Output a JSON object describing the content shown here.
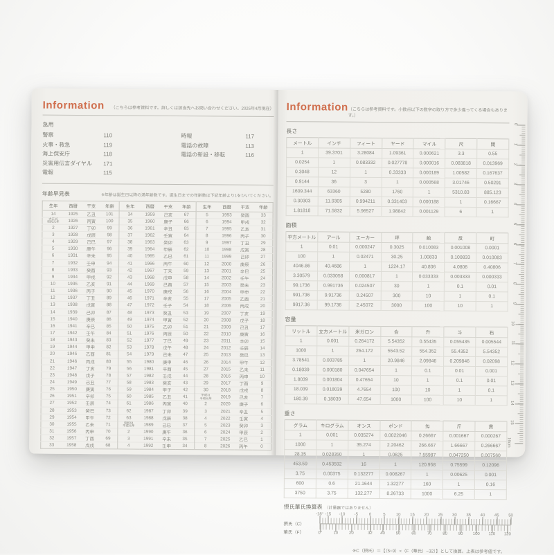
{
  "left_page": {
    "title": "Information",
    "note": "（こちらは参考資料です。詳しくは該当先へお問い合わせください。2025年4月現在）",
    "emergency": {
      "heading": "急用",
      "col1": [
        {
          "label": "警察",
          "number": "110"
        },
        {
          "label": "火事・救急",
          "number": "119"
        },
        {
          "label": "海上保安庁",
          "number": "118"
        },
        {
          "label": "災害用伝言ダイヤル",
          "number": "171"
        },
        {
          "label": "電報",
          "number": "115"
        }
      ],
      "col2": [
        {
          "label": "時報",
          "number": "117"
        },
        {
          "label": "電話の故障",
          "number": "113"
        },
        {
          "label": "電話の新設・移転",
          "number": "116"
        }
      ]
    },
    "age_table": {
      "heading": "年齢早見表",
      "note": "※年齢は誕生日以降の満年齢数です。誕生日までの年齢数は下記年齢より1をひいてください。",
      "headers": [
        "生年",
        "西暦",
        "干支",
        "年齢"
      ],
      "groups": [
        [
          [
            "14",
            "1925",
            "乙丑",
            "101"
          ],
          [
            "大正15|昭和元年",
            "1926",
            "丙寅",
            "100"
          ],
          [
            "2",
            "1927",
            "丁卯",
            "99"
          ],
          [
            "3",
            "1928",
            "戊辰",
            "98"
          ],
          [
            "4",
            "1929",
            "己巳",
            "97"
          ],
          [
            "5",
            "1930",
            "庚午",
            "96"
          ],
          [
            "6",
            "1931",
            "辛未",
            "95"
          ],
          [
            "7",
            "1932",
            "壬申",
            "94"
          ],
          [
            "8",
            "1933",
            "癸酉",
            "93"
          ],
          [
            "9",
            "1934",
            "甲戌",
            "92"
          ],
          [
            "10",
            "1935",
            "乙亥",
            "91"
          ],
          [
            "11",
            "1936",
            "丙子",
            "90"
          ],
          [
            "12",
            "1937",
            "丁丑",
            "89"
          ],
          [
            "13",
            "1938",
            "戊寅",
            "88"
          ],
          [
            "14",
            "1939",
            "己卯",
            "87"
          ],
          [
            "15",
            "1940",
            "庚辰",
            "86"
          ],
          [
            "16",
            "1941",
            "辛巳",
            "85"
          ],
          [
            "17",
            "1942",
            "壬午",
            "84"
          ],
          [
            "18",
            "1943",
            "癸未",
            "83"
          ],
          [
            "19",
            "1944",
            "甲申",
            "82"
          ],
          [
            "20",
            "1945",
            "乙酉",
            "81"
          ],
          [
            "21",
            "1946",
            "丙戌",
            "80"
          ],
          [
            "22",
            "1947",
            "丁亥",
            "79"
          ],
          [
            "23",
            "1948",
            "戊子",
            "78"
          ],
          [
            "24",
            "1949",
            "己丑",
            "77"
          ],
          [
            "25",
            "1950",
            "庚寅",
            "76"
          ],
          [
            "26",
            "1951",
            "辛卯",
            "75"
          ],
          [
            "27",
            "1952",
            "壬辰",
            "74"
          ],
          [
            "28",
            "1953",
            "癸巳",
            "73"
          ],
          [
            "29",
            "1954",
            "甲午",
            "72"
          ],
          [
            "30",
            "1955",
            "乙未",
            "71"
          ],
          [
            "31",
            "1956",
            "丙申",
            "70"
          ],
          [
            "32",
            "1957",
            "丁酉",
            "69"
          ],
          [
            "33",
            "1958",
            "戊戌",
            "68"
          ]
        ],
        [
          [
            "34",
            "1959",
            "己亥",
            "67"
          ],
          [
            "35",
            "1960",
            "庚子",
            "66"
          ],
          [
            "36",
            "1961",
            "辛丑",
            "65"
          ],
          [
            "37",
            "1962",
            "壬寅",
            "64"
          ],
          [
            "38",
            "1963",
            "癸卯",
            "63"
          ],
          [
            "39",
            "1964",
            "甲辰",
            "62"
          ],
          [
            "40",
            "1965",
            "乙巳",
            "61"
          ],
          [
            "41",
            "1966",
            "丙午",
            "60"
          ],
          [
            "42",
            "1967",
            "丁未",
            "59"
          ],
          [
            "43",
            "1968",
            "戊申",
            "58"
          ],
          [
            "44",
            "1969",
            "己酉",
            "57"
          ],
          [
            "45",
            "1970",
            "庚戌",
            "56"
          ],
          [
            "46",
            "1971",
            "辛亥",
            "55"
          ],
          [
            "47",
            "1972",
            "壬子",
            "54"
          ],
          [
            "48",
            "1973",
            "癸丑",
            "53"
          ],
          [
            "49",
            "1974",
            "甲寅",
            "52"
          ],
          [
            "50",
            "1975",
            "乙卯",
            "51"
          ],
          [
            "51",
            "1976",
            "丙辰",
            "50"
          ],
          [
            "52",
            "1977",
            "丁巳",
            "49"
          ],
          [
            "53",
            "1978",
            "戊午",
            "48"
          ],
          [
            "54",
            "1979",
            "己未",
            "47"
          ],
          [
            "55",
            "1980",
            "庚申",
            "46"
          ],
          [
            "56",
            "1981",
            "辛酉",
            "45"
          ],
          [
            "57",
            "1982",
            "壬戌",
            "44"
          ],
          [
            "58",
            "1983",
            "癸亥",
            "43"
          ],
          [
            "59",
            "1984",
            "甲子",
            "42"
          ],
          [
            "60",
            "1985",
            "乙丑",
            "41"
          ],
          [
            "61",
            "1986",
            "丙寅",
            "40"
          ],
          [
            "62",
            "1987",
            "丁卯",
            "39"
          ],
          [
            "63",
            "1988",
            "戊辰",
            "38"
          ],
          [
            "昭和64|平成元年",
            "1989",
            "己巳",
            "37"
          ],
          [
            "2",
            "1990",
            "庚午",
            "36"
          ],
          [
            "3",
            "1991",
            "辛未",
            "35"
          ],
          [
            "4",
            "1992",
            "壬申",
            "34"
          ]
        ],
        [
          [
            "5",
            "1993",
            "癸酉",
            "33"
          ],
          [
            "6",
            "1994",
            "甲戌",
            "32"
          ],
          [
            "7",
            "1995",
            "乙亥",
            "31"
          ],
          [
            "8",
            "1996",
            "丙子",
            "30"
          ],
          [
            "9",
            "1997",
            "丁丑",
            "29"
          ],
          [
            "10",
            "1998",
            "戊寅",
            "28"
          ],
          [
            "11",
            "1999",
            "己卯",
            "27"
          ],
          [
            "12",
            "2000",
            "庚辰",
            "26"
          ],
          [
            "13",
            "2001",
            "辛巳",
            "25"
          ],
          [
            "14",
            "2002",
            "壬午",
            "24"
          ],
          [
            "15",
            "2003",
            "癸未",
            "23"
          ],
          [
            "16",
            "2004",
            "甲申",
            "22"
          ],
          [
            "17",
            "2005",
            "乙酉",
            "21"
          ],
          [
            "18",
            "2006",
            "丙戌",
            "20"
          ],
          [
            "19",
            "2007",
            "丁亥",
            "19"
          ],
          [
            "20",
            "2008",
            "戊子",
            "18"
          ],
          [
            "21",
            "2009",
            "己丑",
            "17"
          ],
          [
            "22",
            "2010",
            "庚寅",
            "16"
          ],
          [
            "23",
            "2011",
            "辛卯",
            "15"
          ],
          [
            "24",
            "2012",
            "壬辰",
            "14"
          ],
          [
            "25",
            "2013",
            "癸巳",
            "13"
          ],
          [
            "26",
            "2014",
            "甲午",
            "12"
          ],
          [
            "27",
            "2015",
            "乙未",
            "11"
          ],
          [
            "28",
            "2016",
            "丙申",
            "10"
          ],
          [
            "29",
            "2017",
            "丁酉",
            "9"
          ],
          [
            "30",
            "2018",
            "戊戌",
            "8"
          ],
          [
            "平成31|令和元年",
            "2019",
            "己亥",
            "7"
          ],
          [
            "2",
            "2020",
            "庚子",
            "6"
          ],
          [
            "3",
            "2021",
            "辛丑",
            "5"
          ],
          [
            "4",
            "2022",
            "壬寅",
            "4"
          ],
          [
            "5",
            "2023",
            "癸卯",
            "3"
          ],
          [
            "6",
            "2024",
            "甲辰",
            "2"
          ],
          [
            "7",
            "2025",
            "乙巳",
            "1"
          ],
          [
            "8",
            "2026",
            "丙午",
            "0"
          ]
        ]
      ]
    }
  },
  "right_page": {
    "title": "Information",
    "note": "（こちらは参考資料です。小数点以下の数字の取り方で多少違ってくる場合もあります。）",
    "tables": [
      {
        "heading": "長さ",
        "headers": [
          "メートル",
          "インチ",
          "フィート",
          "ヤード",
          "マイル",
          "尺",
          "間"
        ],
        "rows": [
          [
            "1",
            "39.3701",
            "3.28084",
            "1.09361",
            "0.000621",
            "3.3",
            "0.55"
          ],
          [
            "0.0254",
            "1",
            "0.083332",
            "0.027778",
            "0.000016",
            "0.083818",
            "0.013969"
          ],
          [
            "0.3048",
            "12",
            "1",
            "0.33333",
            "0.000189",
            "1.00582",
            "0.167637"
          ],
          [
            "0.9144",
            "36",
            "3",
            "1",
            "0.000568",
            "3.01746",
            "0.50291"
          ],
          [
            "1609.344",
            "63360",
            "5280",
            "1760",
            "1",
            "5310.83",
            "885.123"
          ],
          [
            "0.30303",
            "11.9305",
            "0.994211",
            "0.331403",
            "0.000188",
            "1",
            "0.16667"
          ],
          [
            "1.81818",
            "71.5832",
            "5.96527",
            "1.98842",
            "0.001129",
            "6",
            "1"
          ]
        ]
      },
      {
        "heading": "面積",
        "headers": [
          "平方メートル",
          "アール",
          "エーカー",
          "坪",
          "畝",
          "反",
          "町"
        ],
        "rows": [
          [
            "1",
            "0.01",
            "0.000247",
            "0.3025",
            "0.010083",
            "0.001008",
            "0.0001"
          ],
          [
            "100",
            "1",
            "0.02471",
            "30.25",
            "1.00833",
            "0.100833",
            "0.010083"
          ],
          [
            "4046.86",
            "40.4686",
            "1",
            "1224.17",
            "40.806",
            "4.0806",
            "0.40806"
          ],
          [
            "3.30579",
            "0.033058",
            "0.000817",
            "1",
            "0.033333",
            "0.003333",
            "0.000333"
          ],
          [
            "99.1736",
            "0.991736",
            "0.024507",
            "30",
            "1",
            "0.1",
            "0.01"
          ],
          [
            "991.736",
            "9.91736",
            "0.24507",
            "300",
            "10",
            "1",
            "0.1"
          ],
          [
            "9917.36",
            "99.1736",
            "2.45072",
            "3000",
            "100",
            "10",
            "1"
          ]
        ]
      },
      {
        "heading": "容量",
        "headers": [
          "リットル",
          "立方メートル",
          "米ガロン",
          "合",
          "升",
          "斗",
          "石"
        ],
        "rows": [
          [
            "1",
            "0.001",
            "0.264172",
            "5.54352",
            "0.55435",
            "0.055435",
            "0.005544"
          ],
          [
            "1000",
            "1",
            "264.172",
            "5543.52",
            "554.352",
            "55.4352",
            "5.54352"
          ],
          [
            "3.78541",
            "0.003785",
            "1",
            "20.9846",
            "2.09846",
            "0.209846",
            "0.02098"
          ],
          [
            "0.18039",
            "0.000180",
            "0.047654",
            "1",
            "0.1",
            "0.01",
            "0.001"
          ],
          [
            "1.8039",
            "0.001804",
            "0.47654",
            "10",
            "1",
            "0.1",
            "0.01"
          ],
          [
            "18.039",
            "0.018039",
            "4.7654",
            "100",
            "10",
            "1",
            "0.1"
          ],
          [
            "180.39",
            "0.18039",
            "47.654",
            "1000",
            "100",
            "10",
            "1"
          ]
        ]
      },
      {
        "heading": "重さ",
        "headers": [
          "グラム",
          "キログラム",
          "オンス",
          "ポンド",
          "匁",
          "斤",
          "貫"
        ],
        "rows": [
          [
            "1",
            "0.001",
            "0.035274",
            "0.0022046",
            "0.26667",
            "0.001667",
            "0.000267"
          ],
          [
            "1000",
            "1",
            "35.274",
            "2.20462",
            "266.667",
            "1.66667",
            "0.266667"
          ],
          [
            "28.35",
            "0.028350",
            "1",
            "0.0625",
            "7.55987",
            "0.047250",
            "0.007560"
          ],
          [
            "453.59",
            "0.453592",
            "16",
            "1",
            "120.958",
            "0.75599",
            "0.12096"
          ],
          [
            "3.75",
            "0.00375",
            "0.132277",
            "0.008267",
            "1",
            "0.00625",
            "0.001"
          ],
          [
            "600",
            "0.6",
            "21.1644",
            "1.32277",
            "160",
            "1",
            "0.16"
          ],
          [
            "3750",
            "3.75",
            "132.277",
            "8.26733",
            "1000",
            "6.25",
            "1"
          ]
        ]
      }
    ],
    "temp_scale": {
      "heading": "摂氏華氏換算表",
      "heading_note": "（計量器ではありません）",
      "c_label": "摂氏（C）",
      "f_label": "華氏（F）",
      "c_range": [
        -18,
        50
      ],
      "c_tick_labels": [
        "-18°",
        "-15",
        "-10",
        "-5",
        "0",
        "5",
        "10",
        "15",
        "20",
        "25",
        "30",
        "35",
        "40",
        "45",
        "50"
      ],
      "c_tick_values": [
        -18,
        -15,
        -10,
        -5,
        0,
        5,
        10,
        15,
        20,
        25,
        30,
        35,
        40,
        45,
        50
      ],
      "f_tick_labels": [
        "0°",
        "10",
        "20",
        "32",
        "40",
        "50",
        "60",
        "70",
        "80",
        "90",
        "100",
        "110",
        "120"
      ],
      "f_tick_values": [
        0,
        10,
        20,
        32,
        40,
        50,
        60,
        70,
        80,
        90,
        100,
        110,
        120
      ],
      "note": "※C（摂氏）＝【（5÷9）×（F（華氏）−32）】として換算。上表は参考値です。"
    },
    "ruler": {
      "cm_labels": [
        "0",
        "1",
        "2",
        "3",
        "4",
        "5",
        "6",
        "7",
        "8",
        "9",
        "10",
        "11",
        "12",
        "13",
        "14",
        "15",
        "16cm"
      ],
      "cm_max": 16
    }
  },
  "colors": {
    "accent_orange": "#d06f4e",
    "page_cream": "#f1f0ec",
    "ink_gray": "#85857e"
  }
}
